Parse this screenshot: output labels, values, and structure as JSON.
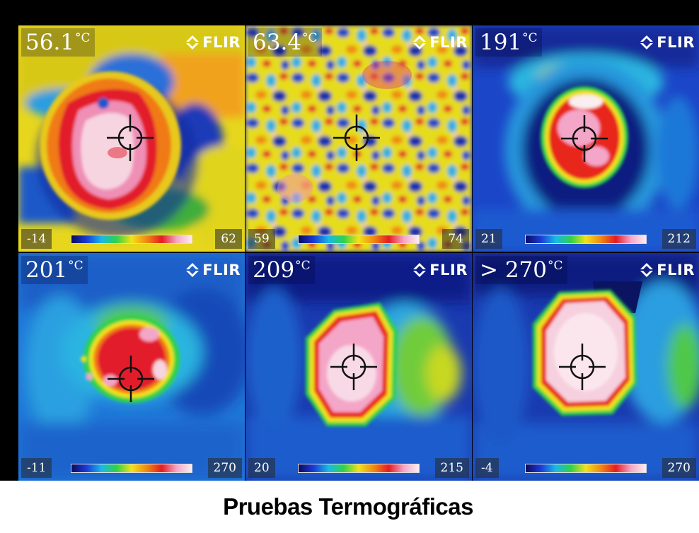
{
  "thermal_grid": {
    "brand_label": "FLIR",
    "panels": [
      {
        "temperature": "56.1",
        "unit": "°C",
        "scale_min": "-14",
        "scale_max": "62"
      },
      {
        "temperature": "63.4",
        "unit": "°C",
        "scale_min": "59",
        "scale_max": "74"
      },
      {
        "temperature": "191",
        "unit": "°C",
        "scale_min": "21",
        "scale_max": "212"
      },
      {
        "temperature": "201",
        "unit": "°C",
        "scale_min": "-11",
        "scale_max": "270"
      },
      {
        "temperature": "209",
        "unit": "°C",
        "scale_min": "20",
        "scale_max": "215"
      },
      {
        "temperature": "> 270",
        "unit": "°C",
        "scale_min": "-4",
        "scale_max": "270"
      }
    ]
  },
  "caption": {
    "text": "Pruebas Termográficas"
  },
  "palette": {
    "cold": "#0a0a60",
    "blue": "#1a3ad8",
    "cyan": "#19b8e8",
    "green": "#2fd24a",
    "yellow": "#f2e21a",
    "orange": "#f08a12",
    "red": "#e51b22",
    "pink": "#f4a6c8",
    "white": "#fbeef0"
  },
  "icons": [
    "flir-logo-icon",
    "crosshair-icon"
  ]
}
